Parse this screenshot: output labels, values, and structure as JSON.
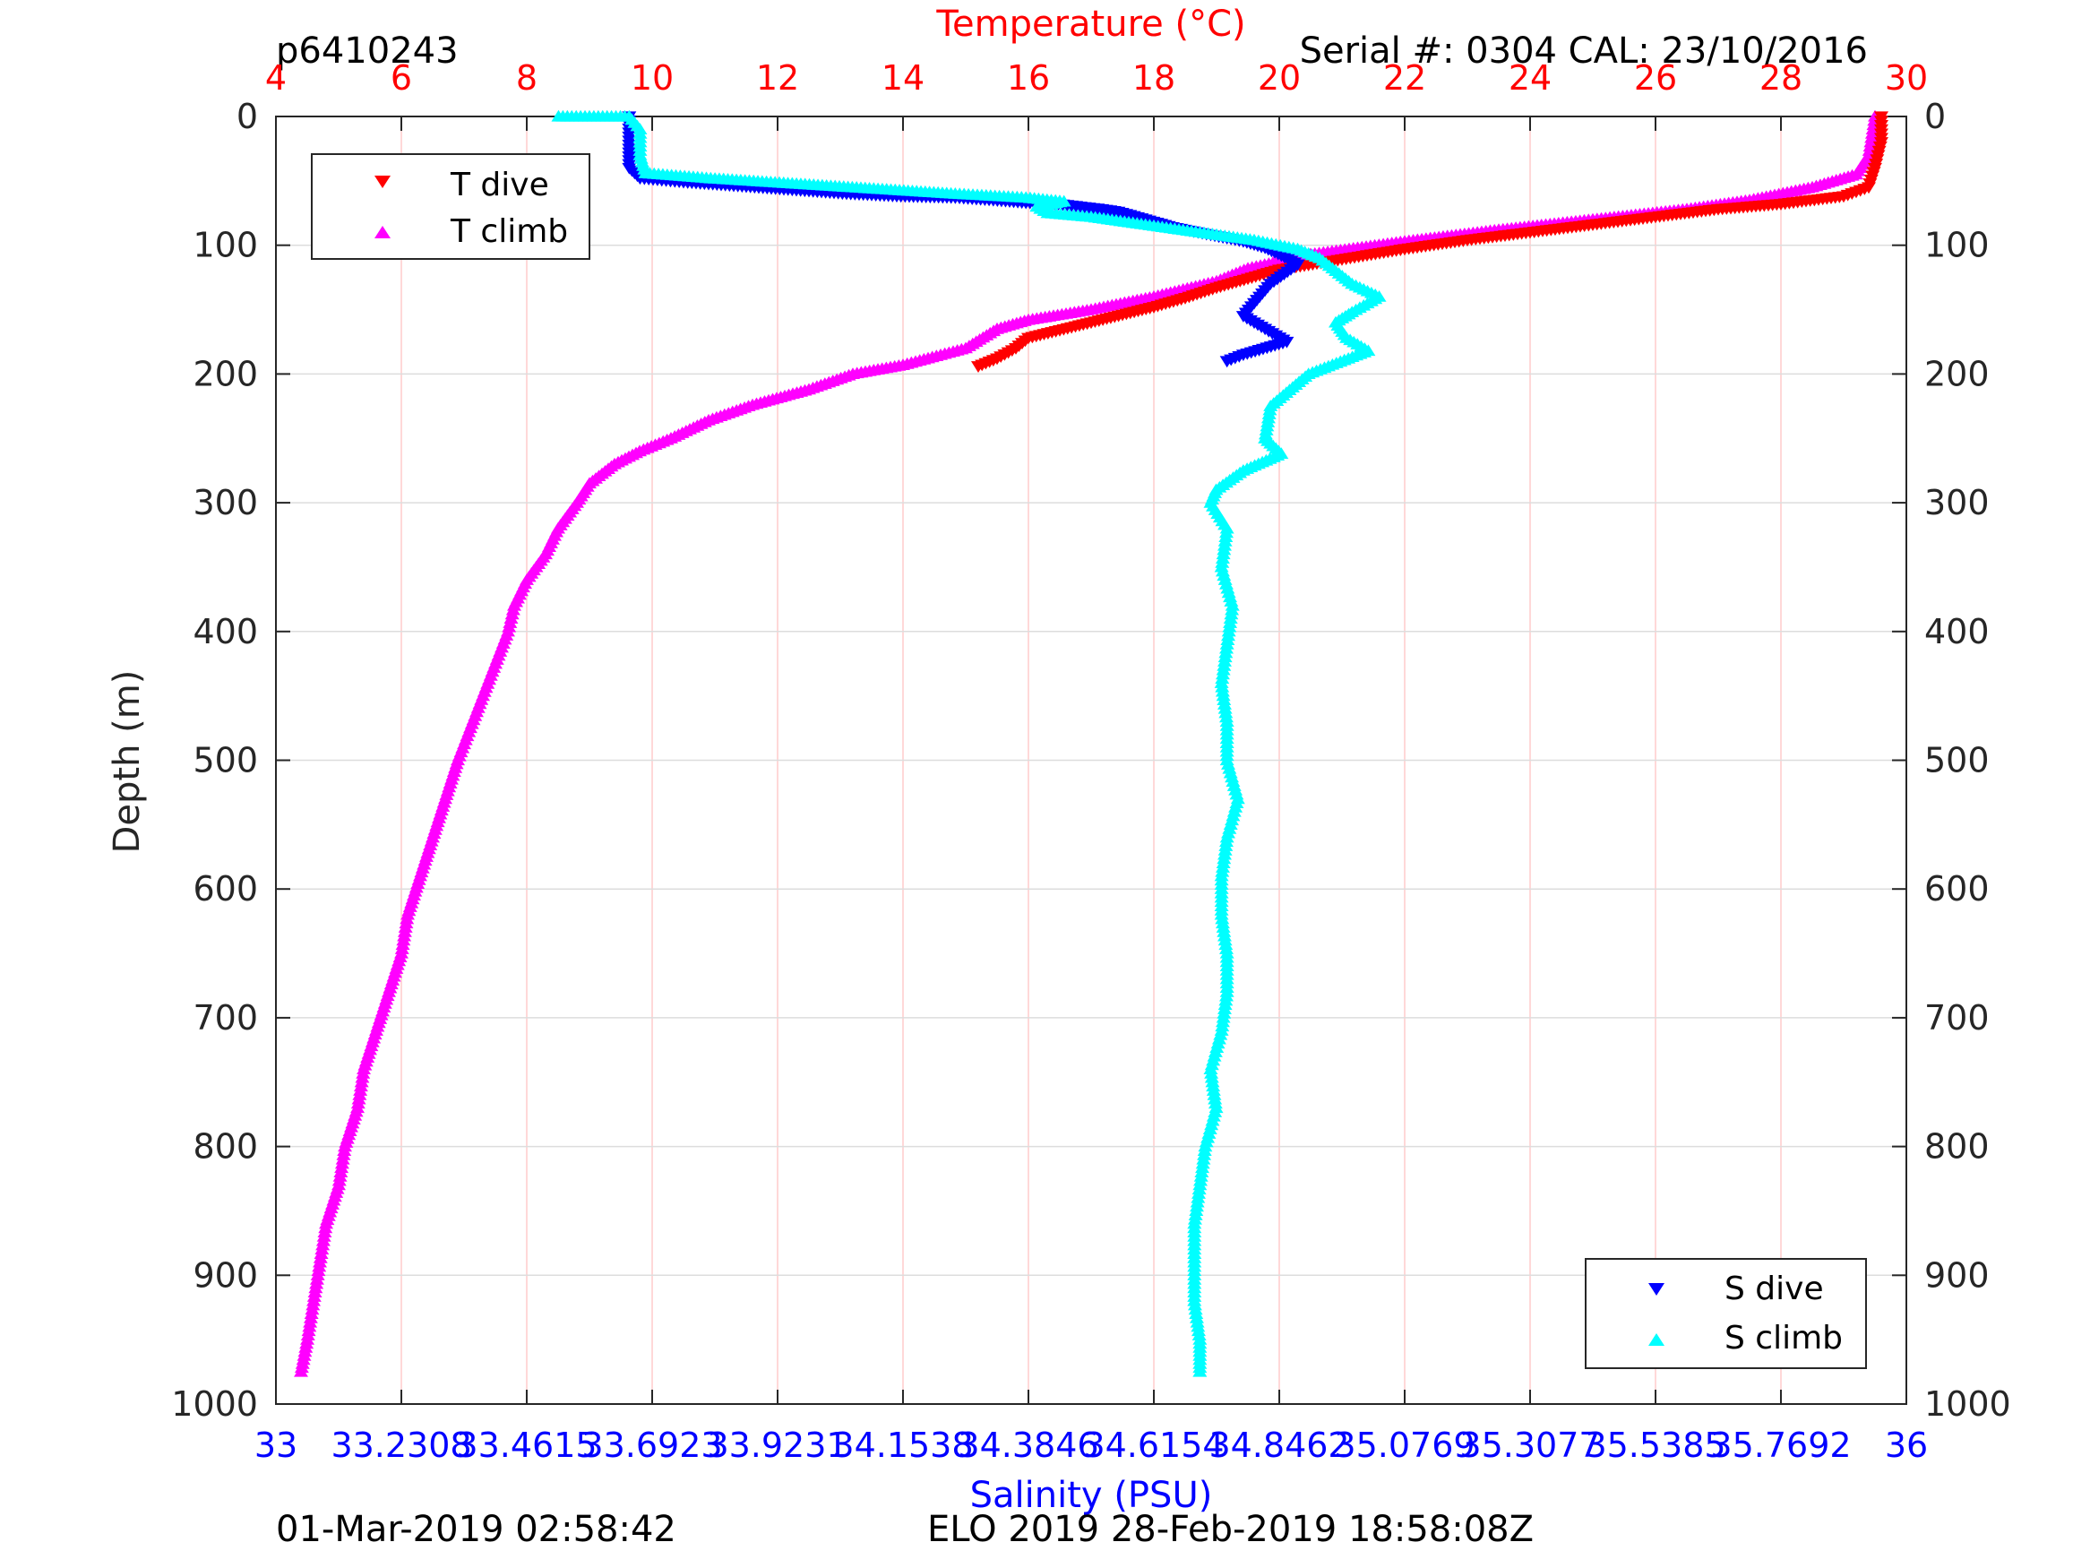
{
  "header": {
    "profile_id": "p6410243",
    "serial": "Serial #: 0304  CAL: 23/10/2016",
    "date_left": "01-Mar-2019 02:58:42",
    "date_right": "ELO 2019 28-Feb-2019 18:58:08Z"
  },
  "chart_data": {
    "type": "scatter",
    "axes": {
      "temperature": {
        "label": "Temperature (°C)",
        "position": "top",
        "color": "#ff0000",
        "range": [
          4,
          30
        ],
        "ticks": [
          "4",
          "6",
          "8",
          "10",
          "12",
          "14",
          "16",
          "18",
          "20",
          "22",
          "24",
          "26",
          "28",
          "30"
        ]
      },
      "salinity": {
        "label": "Salinity (PSU)",
        "position": "bottom",
        "color": "#0000ff",
        "range": [
          33,
          36
        ],
        "ticks": [
          "33",
          "33.2308",
          "33.4615",
          "33.6923",
          "33.9231",
          "34.1538",
          "34.3846",
          "34.6154",
          "34.8462",
          "35.0769",
          "35.3077",
          "35.5385",
          "35.7692",
          "36"
        ]
      },
      "depth": {
        "label": "Depth (m)",
        "range": [
          0,
          1000
        ],
        "reversed": true,
        "ticks": [
          "0",
          "100",
          "200",
          "300",
          "400",
          "500",
          "600",
          "700",
          "800",
          "900",
          "1000"
        ]
      }
    },
    "grid": true,
    "legends": [
      {
        "placement": "top-left",
        "entries": [
          "T dive",
          "T climb"
        ]
      },
      {
        "placement": "bottom-right",
        "entries": [
          "S dive",
          "S climb"
        ]
      }
    ],
    "series": [
      {
        "name": "T dive",
        "axis": "temperature",
        "marker": "triangle-down",
        "color": "#ff0000",
        "points": [
          [
            29.6,
            0
          ],
          [
            29.6,
            20
          ],
          [
            29.5,
            40
          ],
          [
            29.4,
            55
          ],
          [
            29.0,
            62
          ],
          [
            28.0,
            68
          ],
          [
            27.0,
            72
          ],
          [
            26.0,
            78
          ],
          [
            25.0,
            84
          ],
          [
            24.0,
            90
          ],
          [
            23.0,
            96
          ],
          [
            22.0,
            103
          ],
          [
            21.0,
            111
          ],
          [
            20.0,
            119
          ],
          [
            19.5,
            126
          ],
          [
            19.0,
            133
          ],
          [
            18.5,
            141
          ],
          [
            18.0,
            148
          ],
          [
            17.5,
            154
          ],
          [
            17.0,
            160
          ],
          [
            16.5,
            166
          ],
          [
            16.0,
            172
          ],
          [
            15.8,
            180
          ],
          [
            15.5,
            188
          ],
          [
            15.2,
            194
          ]
        ]
      },
      {
        "name": "T climb",
        "axis": "temperature",
        "marker": "triangle-up",
        "color": "#ff00ff",
        "points": [
          [
            29.5,
            0
          ],
          [
            29.4,
            30
          ],
          [
            29.2,
            45
          ],
          [
            28.5,
            55
          ],
          [
            27.5,
            65
          ],
          [
            26.5,
            72
          ],
          [
            25.0,
            80
          ],
          [
            23.5,
            88
          ],
          [
            22.0,
            97
          ],
          [
            20.5,
            107
          ],
          [
            19.5,
            118
          ],
          [
            19.0,
            128
          ],
          [
            18.0,
            140
          ],
          [
            17.0,
            150
          ],
          [
            16.0,
            158
          ],
          [
            15.5,
            165
          ],
          [
            15.0,
            180
          ],
          [
            14.0,
            193
          ],
          [
            13.2,
            200
          ],
          [
            12.5,
            212
          ],
          [
            11.6,
            224
          ],
          [
            10.9,
            236
          ],
          [
            10.3,
            250
          ],
          [
            9.8,
            260
          ],
          [
            9.4,
            270
          ],
          [
            9.0,
            285
          ],
          [
            8.8,
            300
          ],
          [
            8.5,
            320
          ],
          [
            8.3,
            340
          ],
          [
            8.0,
            360
          ],
          [
            7.8,
            380
          ],
          [
            7.7,
            400
          ],
          [
            7.5,
            425
          ],
          [
            7.3,
            450
          ],
          [
            7.1,
            475
          ],
          [
            6.9,
            500
          ],
          [
            6.7,
            530
          ],
          [
            6.5,
            560
          ],
          [
            6.3,
            590
          ],
          [
            6.1,
            620
          ],
          [
            6.0,
            650
          ],
          [
            5.8,
            680
          ],
          [
            5.6,
            710
          ],
          [
            5.4,
            740
          ],
          [
            5.3,
            770
          ],
          [
            5.1,
            800
          ],
          [
            5.0,
            830
          ],
          [
            4.8,
            860
          ],
          [
            4.7,
            890
          ],
          [
            4.6,
            920
          ],
          [
            4.5,
            950
          ],
          [
            4.4,
            975
          ]
        ]
      },
      {
        "name": "S dive",
        "axis": "salinity",
        "marker": "triangle-down",
        "color": "#0000ff",
        "points": [
          [
            33.65,
            0
          ],
          [
            33.65,
            25
          ],
          [
            33.65,
            40
          ],
          [
            33.67,
            48
          ],
          [
            33.75,
            51
          ],
          [
            33.85,
            54
          ],
          [
            33.95,
            57
          ],
          [
            34.05,
            60
          ],
          [
            34.15,
            62
          ],
          [
            34.25,
            63
          ],
          [
            34.32,
            65
          ],
          [
            34.38,
            67
          ],
          [
            34.44,
            68
          ],
          [
            34.48,
            70
          ],
          [
            34.52,
            72
          ],
          [
            34.55,
            74
          ],
          [
            34.6,
            80
          ],
          [
            34.65,
            86
          ],
          [
            34.72,
            92
          ],
          [
            34.78,
            97
          ],
          [
            34.82,
            102
          ],
          [
            34.85,
            108
          ],
          [
            34.88,
            115
          ],
          [
            34.83,
            130
          ],
          [
            34.8,
            145
          ],
          [
            34.78,
            155
          ],
          [
            34.82,
            165
          ],
          [
            34.86,
            175
          ],
          [
            34.78,
            185
          ],
          [
            34.75,
            190
          ]
        ]
      },
      {
        "name": "S climb",
        "axis": "salinity",
        "marker": "triangle-up",
        "color": "#00ffff",
        "points": [
          [
            33.52,
            0
          ],
          [
            33.65,
            0
          ],
          [
            33.67,
            10
          ],
          [
            33.67,
            30
          ],
          [
            33.68,
            44
          ],
          [
            33.8,
            48
          ],
          [
            33.95,
            52
          ],
          [
            34.1,
            56
          ],
          [
            34.25,
            60
          ],
          [
            34.38,
            63
          ],
          [
            34.45,
            66
          ],
          [
            34.4,
            70
          ],
          [
            34.42,
            75
          ],
          [
            34.5,
            78
          ],
          [
            34.6,
            84
          ],
          [
            34.7,
            90
          ],
          [
            34.8,
            96
          ],
          [
            34.88,
            103
          ],
          [
            34.92,
            110
          ],
          [
            34.95,
            120
          ],
          [
            34.98,
            130
          ],
          [
            35.03,
            140
          ],
          [
            34.98,
            152
          ],
          [
            34.95,
            160
          ],
          [
            34.97,
            172
          ],
          [
            35.01,
            182
          ],
          [
            34.9,
            200
          ],
          [
            34.83,
            225
          ],
          [
            34.82,
            250
          ],
          [
            34.85,
            262
          ],
          [
            34.78,
            275
          ],
          [
            34.73,
            290
          ],
          [
            34.72,
            300
          ],
          [
            34.75,
            320
          ],
          [
            34.74,
            350
          ],
          [
            34.76,
            380
          ],
          [
            34.75,
            410
          ],
          [
            34.74,
            440
          ],
          [
            34.75,
            470
          ],
          [
            34.75,
            500
          ],
          [
            34.77,
            530
          ],
          [
            34.75,
            560
          ],
          [
            34.74,
            590
          ],
          [
            34.74,
            620
          ],
          [
            34.75,
            650
          ],
          [
            34.75,
            680
          ],
          [
            34.74,
            710
          ],
          [
            34.72,
            740
          ],
          [
            34.73,
            770
          ],
          [
            34.71,
            800
          ],
          [
            34.7,
            830
          ],
          [
            34.69,
            860
          ],
          [
            34.69,
            890
          ],
          [
            34.69,
            920
          ],
          [
            34.7,
            950
          ],
          [
            34.7,
            975
          ]
        ]
      }
    ]
  },
  "colors": {
    "temperature": "#ff0000",
    "salinity": "#0000ff",
    "grid_vertical": "#ffcccc",
    "grid_horizontal": "#dddddd"
  }
}
